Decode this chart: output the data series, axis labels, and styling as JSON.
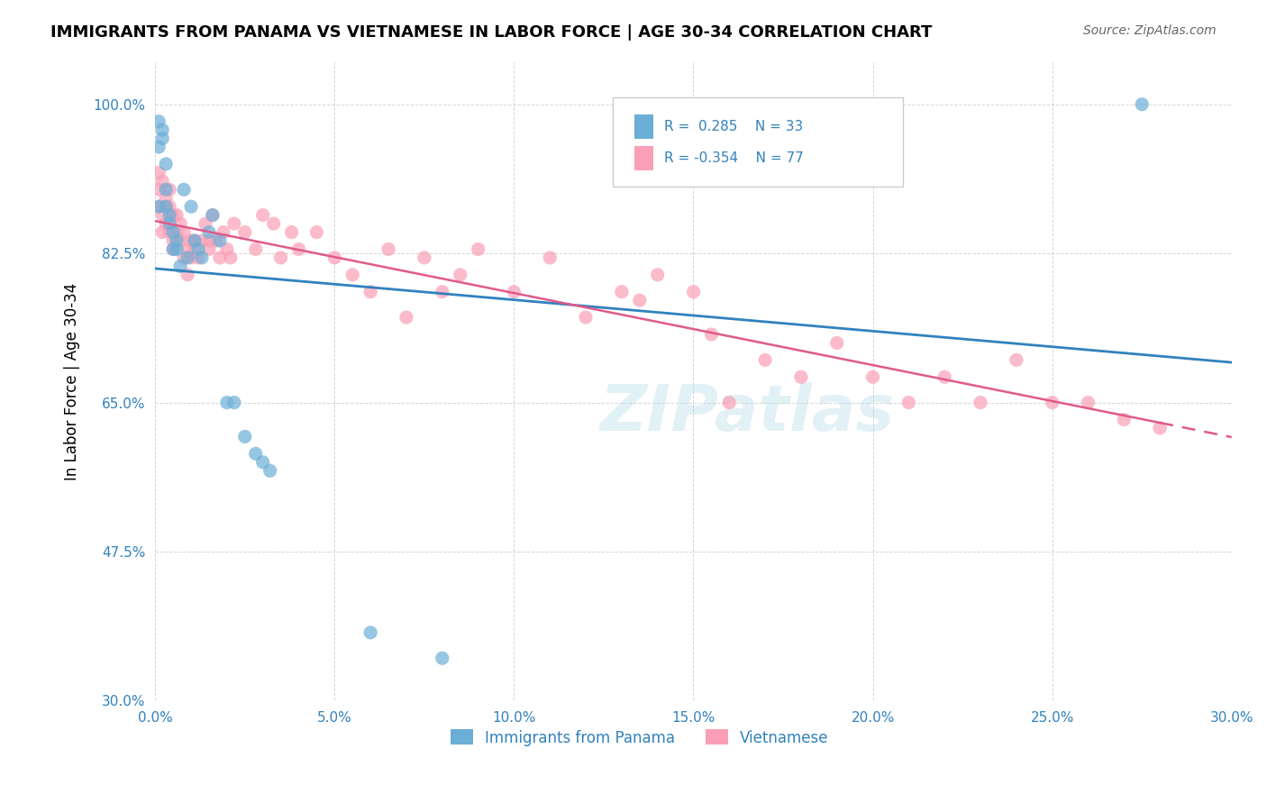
{
  "title": "IMMIGRANTS FROM PANAMA VS VIETNAMESE IN LABOR FORCE | AGE 30-34 CORRELATION CHART",
  "source": "Source: ZipAtlas.com",
  "xlabel_bottom": "",
  "ylabel": "In Labor Force | Age 30-34",
  "xlim": [
    0.0,
    0.3
  ],
  "ylim": [
    0.3,
    1.05
  ],
  "xtick_labels": [
    "0.0%",
    "5.0%",
    "10.0%",
    "15.0%",
    "20.0%",
    "25.0%",
    "30.0%"
  ],
  "xtick_values": [
    0.0,
    0.05,
    0.1,
    0.15,
    0.2,
    0.25,
    0.3
  ],
  "ytick_labels": [
    "30.0%",
    "47.5%",
    "65.0%",
    "82.5%",
    "100.0%"
  ],
  "ytick_values": [
    0.3,
    0.475,
    0.65,
    0.825,
    1.0
  ],
  "legend_label1": "Immigrants from Panama",
  "legend_label2": "Vietnamese",
  "r1": 0.285,
  "n1": 33,
  "r2": -0.354,
  "n2": 77,
  "blue_color": "#6baed6",
  "pink_color": "#fa9fb5",
  "line_blue": "#3182bd",
  "line_pink": "#e05a8a",
  "watermark": "ZIPatlas",
  "panama_x": [
    0.001,
    0.001,
    0.001,
    0.002,
    0.002,
    0.003,
    0.003,
    0.003,
    0.004,
    0.004,
    0.005,
    0.005,
    0.006,
    0.006,
    0.007,
    0.008,
    0.009,
    0.01,
    0.011,
    0.012,
    0.013,
    0.015,
    0.016,
    0.018,
    0.02,
    0.022,
    0.025,
    0.028,
    0.03,
    0.032,
    0.06,
    0.08,
    0.275
  ],
  "panama_y": [
    0.88,
    0.95,
    0.98,
    0.97,
    0.96,
    0.9,
    0.93,
    0.88,
    0.87,
    0.86,
    0.85,
    0.83,
    0.83,
    0.84,
    0.81,
    0.9,
    0.82,
    0.88,
    0.84,
    0.83,
    0.82,
    0.85,
    0.87,
    0.84,
    0.65,
    0.65,
    0.61,
    0.59,
    0.58,
    0.57,
    0.38,
    0.35,
    1.0
  ],
  "viet_x": [
    0.001,
    0.001,
    0.001,
    0.002,
    0.002,
    0.002,
    0.003,
    0.003,
    0.003,
    0.004,
    0.004,
    0.004,
    0.005,
    0.005,
    0.005,
    0.006,
    0.006,
    0.007,
    0.007,
    0.008,
    0.008,
    0.009,
    0.009,
    0.01,
    0.01,
    0.011,
    0.011,
    0.012,
    0.013,
    0.014,
    0.015,
    0.015,
    0.016,
    0.017,
    0.018,
    0.019,
    0.02,
    0.021,
    0.022,
    0.025,
    0.028,
    0.03,
    0.033,
    0.035,
    0.038,
    0.04,
    0.045,
    0.05,
    0.055,
    0.06,
    0.065,
    0.07,
    0.075,
    0.08,
    0.085,
    0.09,
    0.1,
    0.11,
    0.12,
    0.13,
    0.135,
    0.14,
    0.15,
    0.155,
    0.16,
    0.17,
    0.18,
    0.19,
    0.2,
    0.21,
    0.22,
    0.23,
    0.24,
    0.25,
    0.26,
    0.27,
    0.28
  ],
  "viet_y": [
    0.88,
    0.9,
    0.92,
    0.91,
    0.87,
    0.85,
    0.89,
    0.88,
    0.86,
    0.9,
    0.88,
    0.85,
    0.87,
    0.83,
    0.84,
    0.87,
    0.85,
    0.86,
    0.84,
    0.82,
    0.85,
    0.83,
    0.8,
    0.84,
    0.82,
    0.84,
    0.83,
    0.82,
    0.84,
    0.86,
    0.83,
    0.84,
    0.87,
    0.84,
    0.82,
    0.85,
    0.83,
    0.82,
    0.86,
    0.85,
    0.83,
    0.87,
    0.86,
    0.82,
    0.85,
    0.83,
    0.85,
    0.82,
    0.8,
    0.78,
    0.83,
    0.75,
    0.82,
    0.78,
    0.8,
    0.83,
    0.78,
    0.82,
    0.75,
    0.78,
    0.77,
    0.8,
    0.78,
    0.73,
    0.65,
    0.7,
    0.68,
    0.72,
    0.68,
    0.65,
    0.68,
    0.65,
    0.7,
    0.65,
    0.65,
    0.63,
    0.62
  ]
}
